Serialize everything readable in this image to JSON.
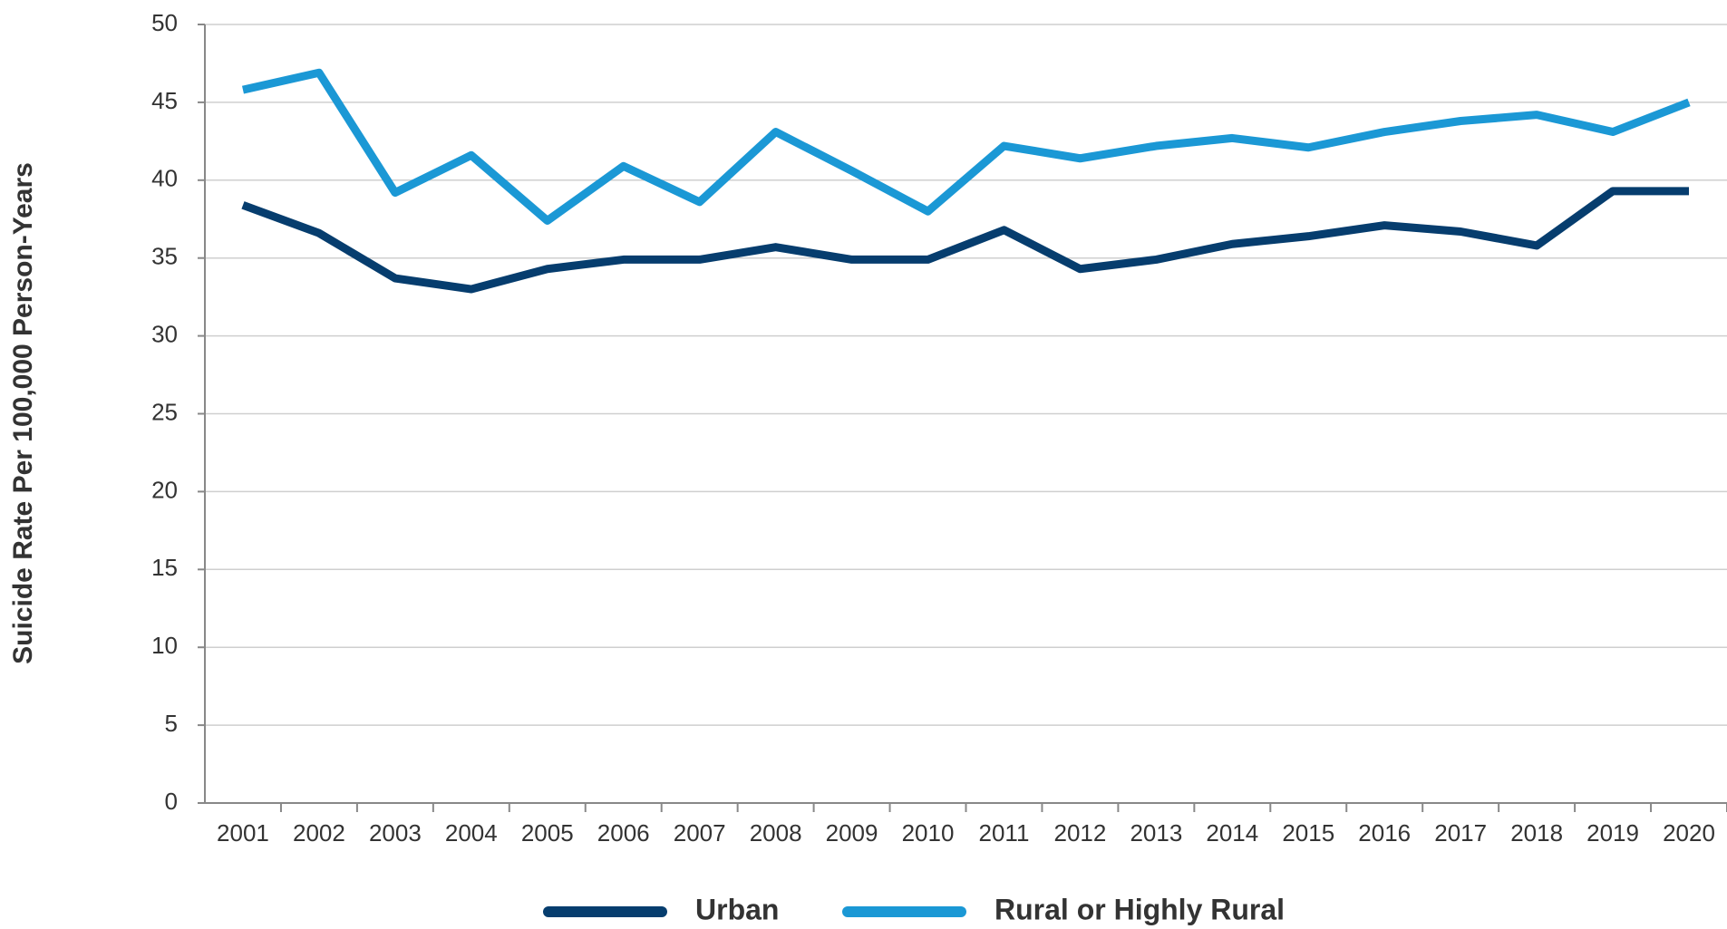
{
  "chart_data": {
    "type": "line",
    "y_label": "Suicide Rate Per 100,000 Person-Years",
    "categories": [
      "2001",
      "2002",
      "2003",
      "2004",
      "2005",
      "2006",
      "2007",
      "2008",
      "2009",
      "2010",
      "2011",
      "2012",
      "2013",
      "2014",
      "2015",
      "2016",
      "2017",
      "2018",
      "2019",
      "2020"
    ],
    "series": [
      {
        "name": "Urban",
        "color": "#063d6e",
        "values": [
          38.4,
          36.6,
          33.7,
          33.0,
          34.3,
          34.9,
          34.9,
          35.7,
          34.9,
          34.9,
          36.8,
          34.3,
          34.9,
          35.9,
          36.4,
          37.1,
          36.7,
          35.8,
          39.3,
          39.3
        ]
      },
      {
        "name": "Rural or Highly Rural",
        "color": "#1b98d5",
        "values": [
          45.8,
          46.9,
          39.2,
          41.6,
          37.4,
          40.9,
          38.6,
          43.1,
          40.6,
          38.0,
          42.2,
          41.4,
          42.2,
          42.7,
          42.1,
          43.1,
          43.8,
          44.2,
          43.1,
          45.0
        ]
      }
    ],
    "ylim": [
      0,
      50
    ],
    "yticks": [
      0,
      5,
      10,
      15,
      20,
      25,
      30,
      35,
      40,
      45,
      50
    ],
    "grid": true
  }
}
